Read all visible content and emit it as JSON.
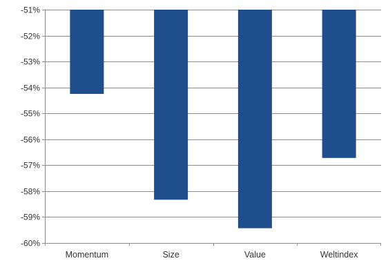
{
  "chart_data": {
    "type": "bar",
    "categories": [
      "Momentum",
      "Size",
      "Value",
      "Weltindex"
    ],
    "values": [
      -54.25,
      -58.33,
      -59.43,
      -56.72
    ],
    "title": "",
    "xlabel": "",
    "ylabel": "",
    "ylim": [
      -60,
      -51
    ],
    "y_ticks": [
      -51,
      -52,
      -53,
      -54,
      -55,
      -56,
      -57,
      -58,
      -59,
      -60
    ],
    "y_tick_labels": [
      "-51%",
      "-52%",
      "-53%",
      "-54%",
      "-55%",
      "-56%",
      "-57%",
      "-58%",
      "-59%",
      "-60%"
    ],
    "bars_hang_from": -51,
    "grid": true,
    "legend": "none",
    "bar_color": "#1f4e8c"
  }
}
